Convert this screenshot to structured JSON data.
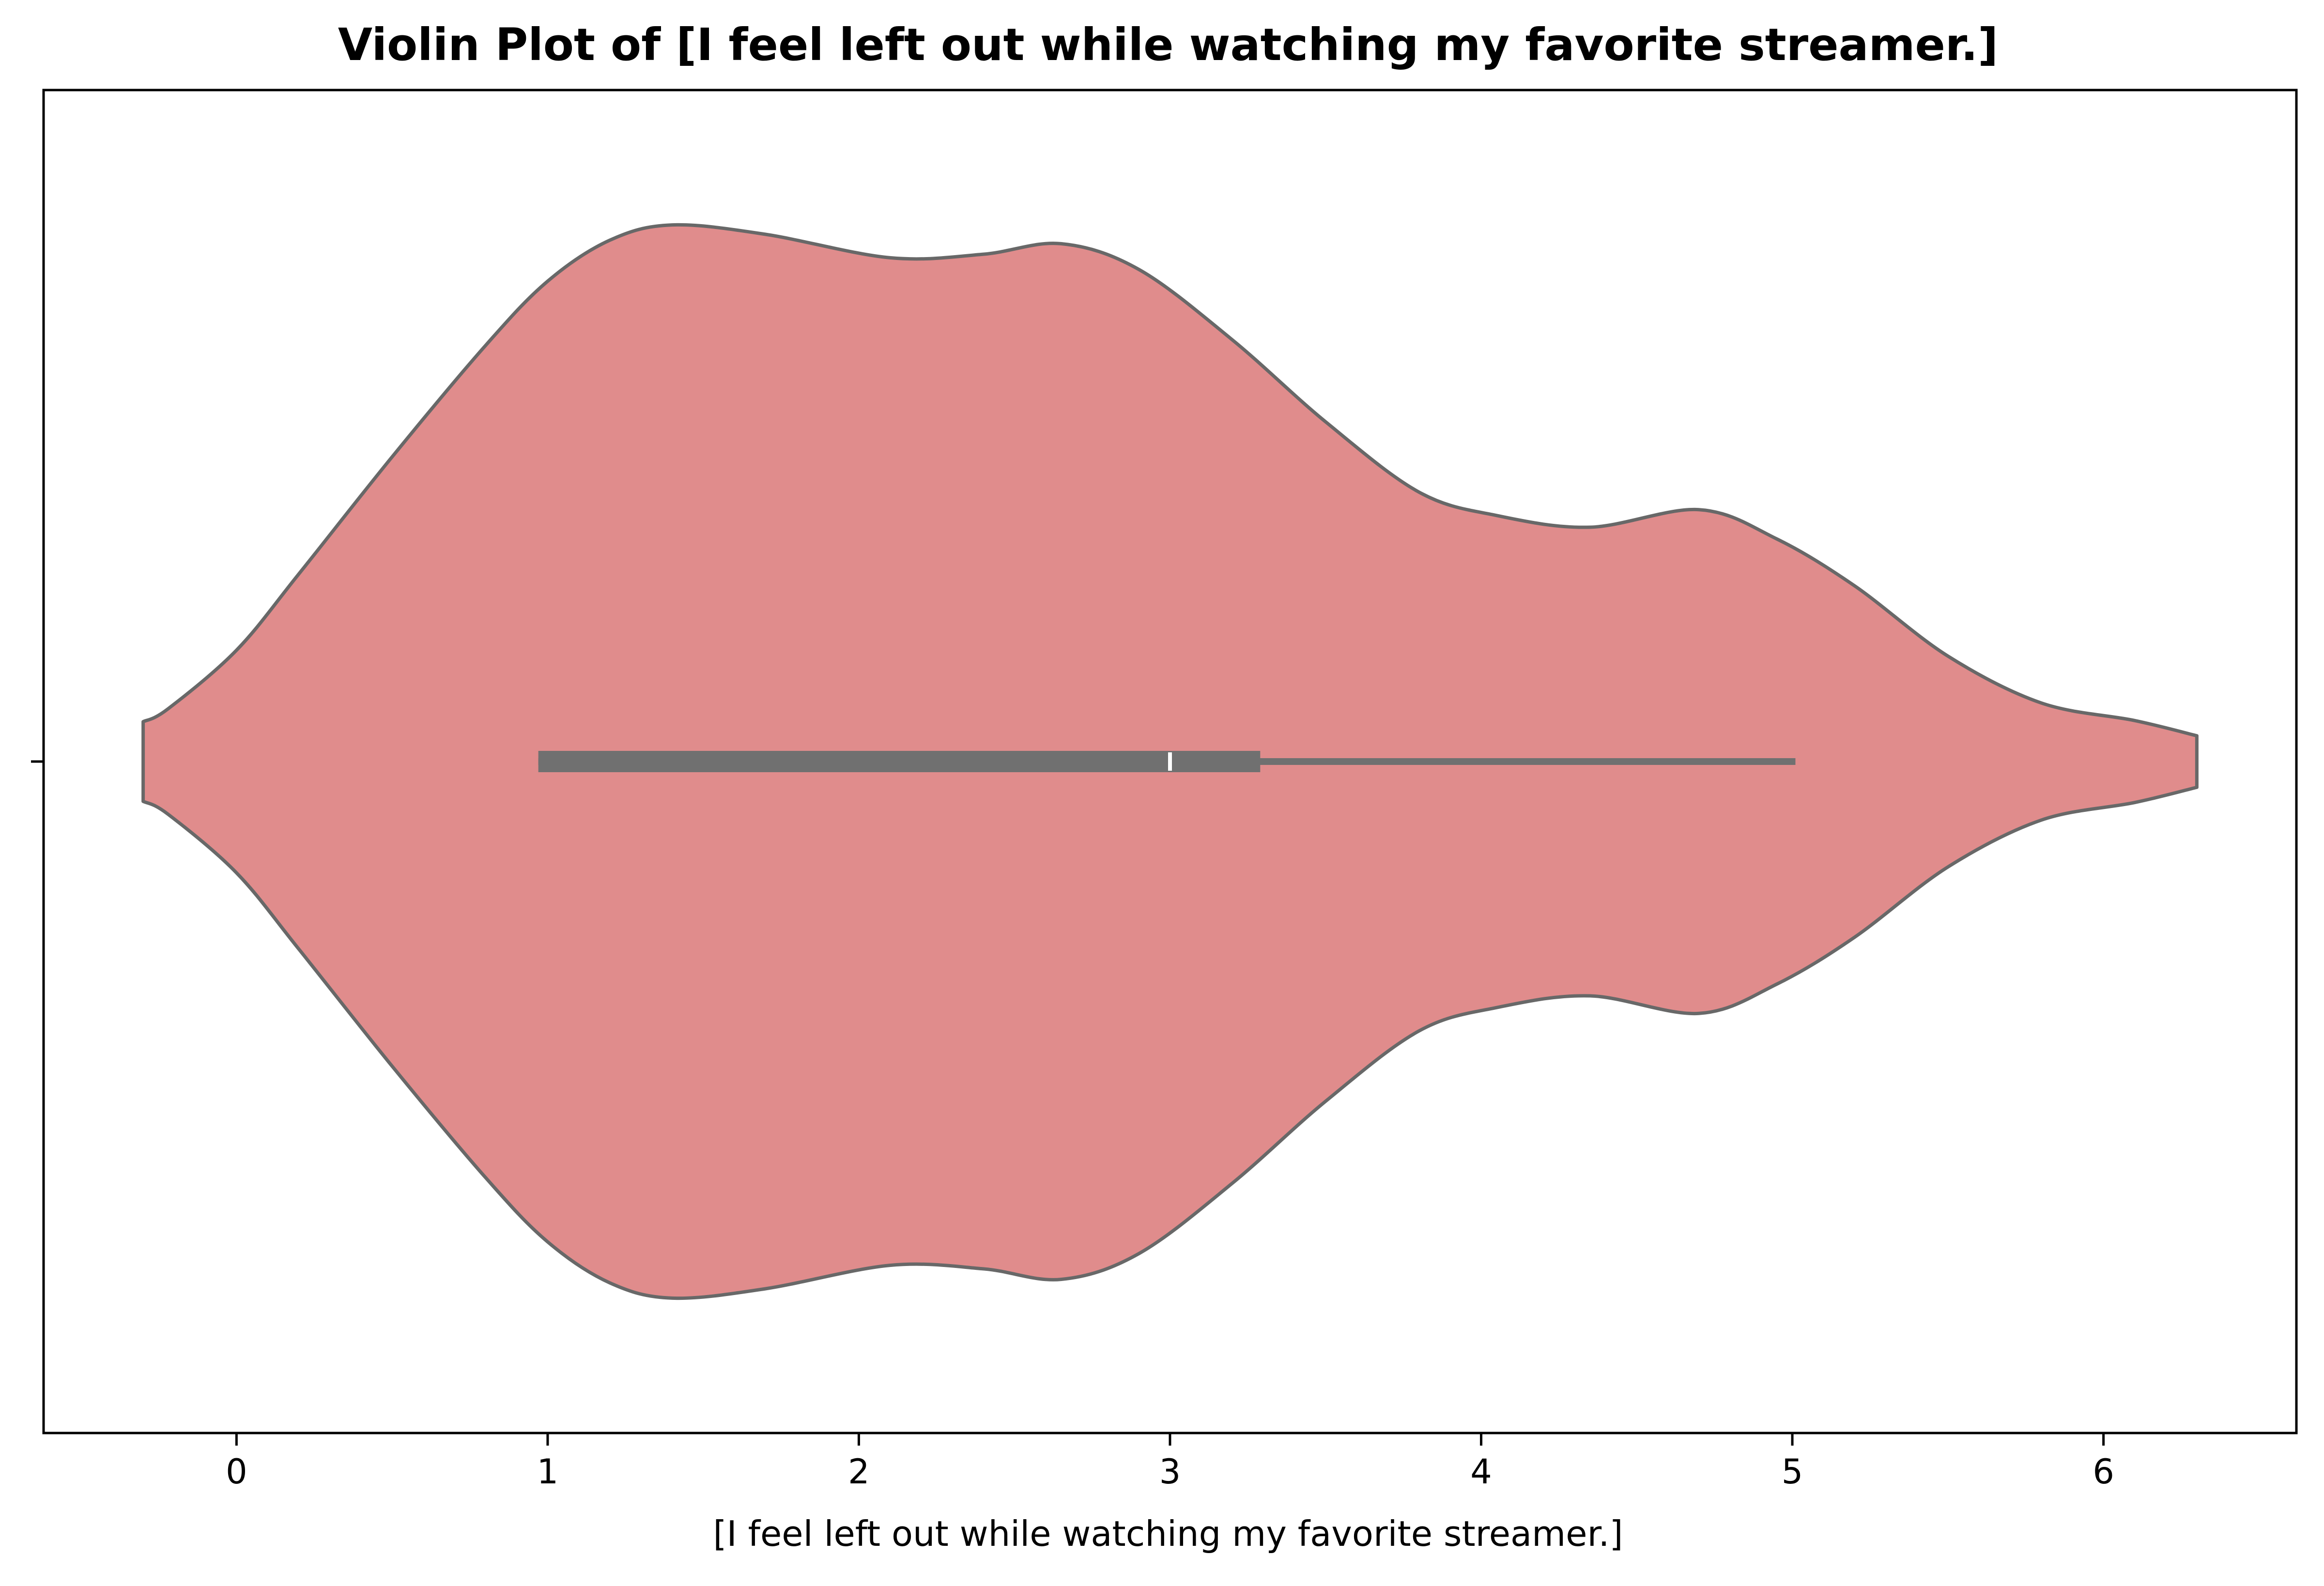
{
  "chart_data": {
    "type": "violin",
    "title": "Violin Plot of [I feel left out while watching my favorite streamer.]",
    "xlabel": "[I feel left out while watching my favorite streamer.]",
    "ylabel": "",
    "xlim": [
      -0.62,
      6.62
    ],
    "x_ticks": [
      0,
      1,
      2,
      3,
      4,
      5,
      6
    ],
    "x_tick_labels": [
      "0",
      "1",
      "2",
      "3",
      "4",
      "5",
      "6"
    ],
    "grid": false,
    "legend": "none",
    "colors": {
      "violin_fill": "#e08c8c",
      "violin_edge": "#686868",
      "box": "#707070",
      "median": "#ffffff",
      "axes": "#000000"
    },
    "density_curve": {
      "x": [
        -0.3,
        -0.22,
        0.0,
        0.2,
        0.5,
        0.8,
        1.0,
        1.2,
        1.4,
        1.7,
        2.1,
        2.4,
        2.65,
        2.9,
        3.2,
        3.5,
        3.8,
        4.05,
        4.35,
        4.7,
        4.95,
        5.2,
        5.5,
        5.8,
        6.1,
        6.3
      ],
      "half_width": [
        0.034,
        0.045,
        0.095,
        0.16,
        0.26,
        0.355,
        0.41,
        0.445,
        0.458,
        0.45,
        0.43,
        0.433,
        0.442,
        0.42,
        0.36,
        0.29,
        0.23,
        0.21,
        0.2,
        0.215,
        0.19,
        0.15,
        0.09,
        0.05,
        0.035,
        0.022
      ]
    },
    "box": {
      "q1": 0.97,
      "median": 3.0,
      "q3": 3.29,
      "whisker_low": 0.97,
      "whisker_high": 5.01
    }
  }
}
